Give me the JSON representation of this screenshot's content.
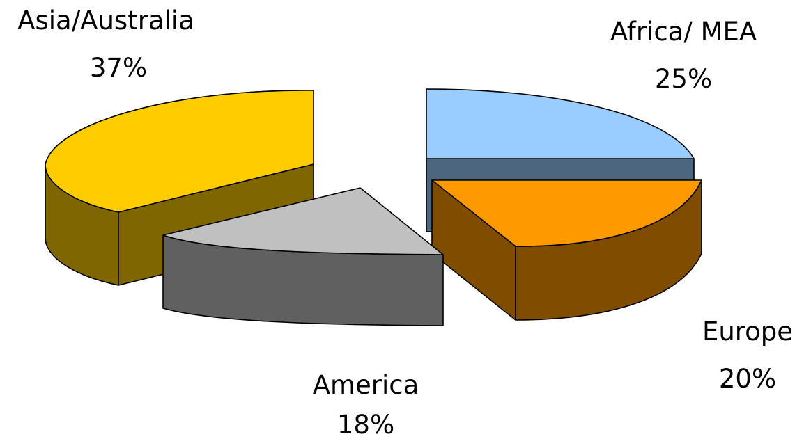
{
  "chart_data": {
    "type": "pie",
    "style": "3d-exploded",
    "title": "",
    "slices": [
      {
        "label": "Asia/Australia",
        "value": 37,
        "display": "37%",
        "top_color": "#FFCC00",
        "side_color": "#806600"
      },
      {
        "label": "Africa/ MEA",
        "value": 25,
        "display": "25%",
        "top_color": "#99CCFF",
        "side_color": "#4D6680"
      },
      {
        "label": "Europe",
        "value": 20,
        "display": "20%",
        "top_color": "#FF9900",
        "side_color": "#804D00"
      },
      {
        "label": "America",
        "value": 18,
        "display": "18%",
        "top_color": "#C0C0C0",
        "side_color": "#606060"
      }
    ],
    "legend": false
  }
}
